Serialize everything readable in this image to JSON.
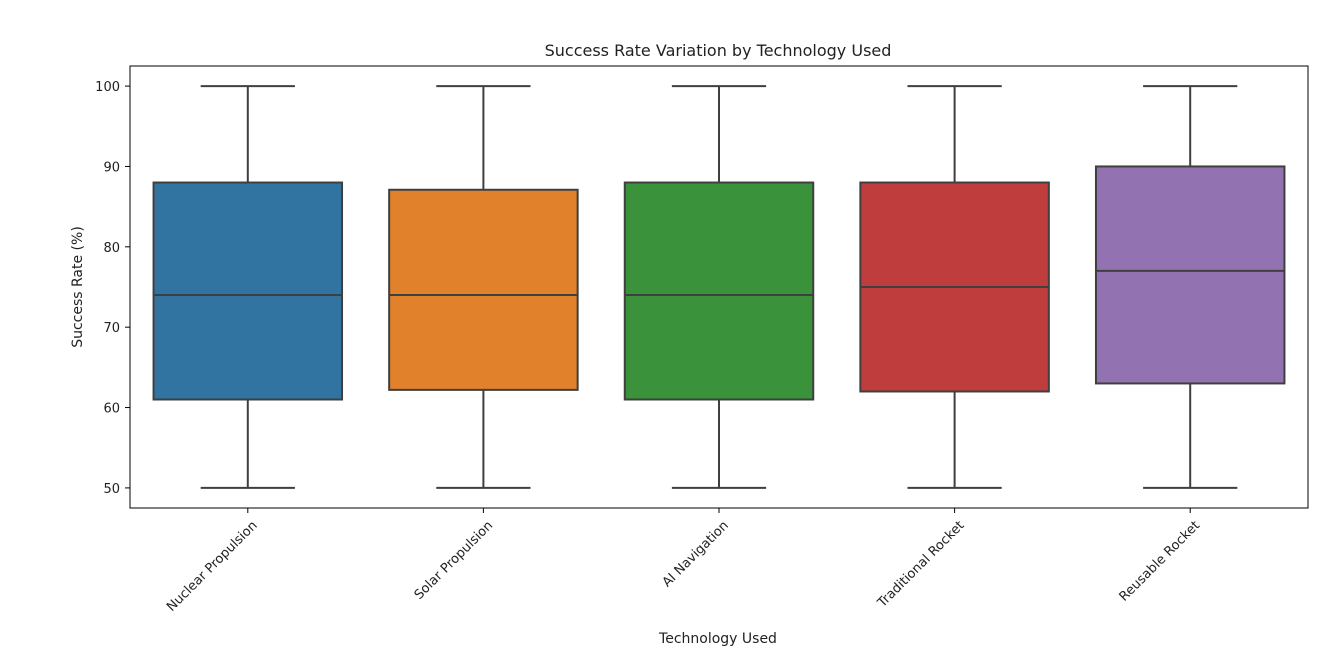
{
  "chart_data": {
    "type": "box",
    "title": "Success Rate Variation by Technology Used",
    "xlabel": "Technology Used",
    "ylabel": "Success Rate (%)",
    "ylim": [
      47.5,
      102.5
    ],
    "yticks": [
      "50",
      "60",
      "70",
      "80",
      "90",
      "100"
    ],
    "grid": false,
    "categories": [
      "Nuclear Propulsion",
      "Solar Propulsion",
      "AI Navigation",
      "Traditional Rocket",
      "Reusable Rocket"
    ],
    "boxes": [
      {
        "category": "Nuclear Propulsion",
        "min": 50,
        "q1": 61,
        "median": 74,
        "q3": 88,
        "max": 100,
        "color": "#3274a1"
      },
      {
        "category": "Solar Propulsion",
        "min": 50,
        "q1": 62.2,
        "median": 74,
        "q3": 87.1,
        "max": 100,
        "color": "#e1812c"
      },
      {
        "category": "AI Navigation",
        "min": 50,
        "q1": 61,
        "median": 74,
        "q3": 88,
        "max": 100,
        "color": "#3a923a"
      },
      {
        "category": "Traditional Rocket",
        "min": 50,
        "q1": 62,
        "median": 75,
        "q3": 88,
        "max": 100,
        "color": "#c03d3e"
      },
      {
        "category": "Reusable Rocket",
        "min": 50,
        "q1": 63,
        "median": 77,
        "q3": 90,
        "max": 100,
        "color": "#9372b2"
      }
    ]
  }
}
